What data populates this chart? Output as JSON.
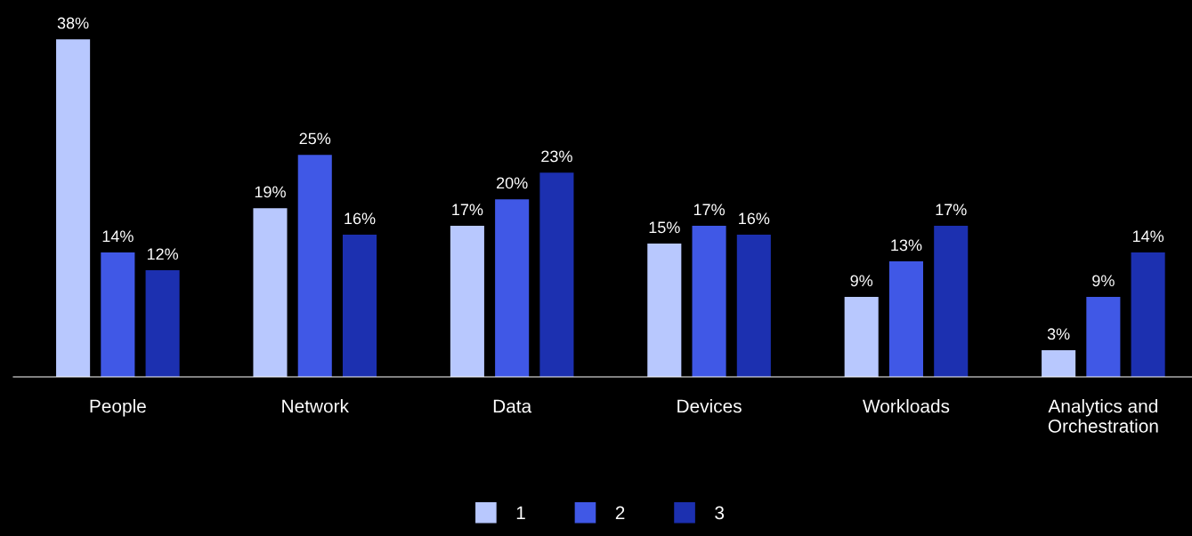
{
  "chart_data": {
    "type": "bar",
    "categories": [
      "People",
      "Network",
      "Data",
      "Devices",
      "Workloads",
      "Analytics and\nOrchestration"
    ],
    "series": [
      {
        "name": "1",
        "color": "#b8c8fe",
        "values": [
          38,
          19,
          17,
          15,
          9,
          3
        ],
        "value_labels": [
          "38%",
          "19%",
          "17%",
          "15%",
          "9%",
          "3%"
        ]
      },
      {
        "name": "2",
        "color": "#4058e6",
        "values": [
          14,
          25,
          20,
          17,
          13,
          9
        ],
        "value_labels": [
          "14%",
          "25%",
          "20%",
          "17%",
          "13%",
          "9%"
        ]
      },
      {
        "name": "3",
        "color": "#1c30b0",
        "values": [
          12,
          16,
          23,
          16,
          17,
          14
        ],
        "value_labels": [
          "12%",
          "16%",
          "23%",
          "16%",
          "17%",
          "14%"
        ]
      }
    ],
    "grid": false,
    "legend": "bottom"
  }
}
